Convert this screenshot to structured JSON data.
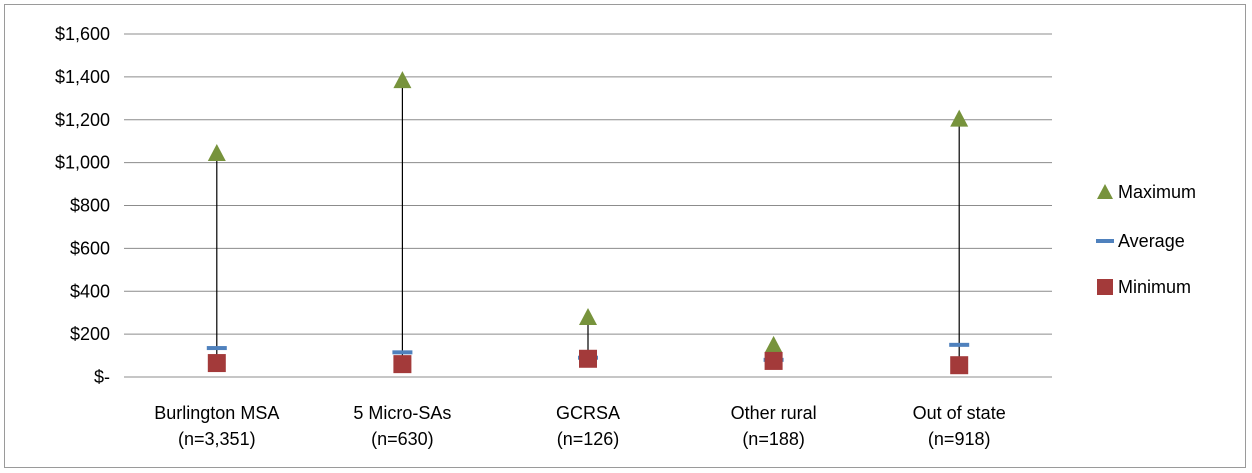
{
  "chart_data": {
    "type": "scatter",
    "categories": [
      "Burlington MSA",
      "5 Micro-SAs",
      "GCRSA",
      "Other rural",
      "Out of state"
    ],
    "category_sublabels": [
      "(n=3,351)",
      "(n=630)",
      "(n=126)",
      "(n=188)",
      "(n=918)"
    ],
    "ylim": [
      0,
      1600
    ],
    "yticks": [
      0,
      200,
      400,
      600,
      800,
      1000,
      1200,
      1400,
      1600
    ],
    "ytick_labels": [
      "$-",
      "$200",
      "$400",
      "$600",
      "$800",
      "$1,000",
      "$1,200",
      "$1,400",
      "$1,600"
    ],
    "grid": true,
    "legend_position": "right",
    "series": [
      {
        "name": "Maximum",
        "marker": "triangle",
        "color": "#77933c",
        "values": [
          1045,
          1385,
          280,
          150,
          1205
        ]
      },
      {
        "name": "Average",
        "marker": "dash",
        "color": "#4f81bd",
        "values": [
          135,
          115,
          90,
          80,
          150
        ]
      },
      {
        "name": "Minimum",
        "marker": "square",
        "color": "#a33a3a",
        "values": [
          65,
          60,
          85,
          75,
          55
        ]
      }
    ],
    "drop_lines": true
  }
}
